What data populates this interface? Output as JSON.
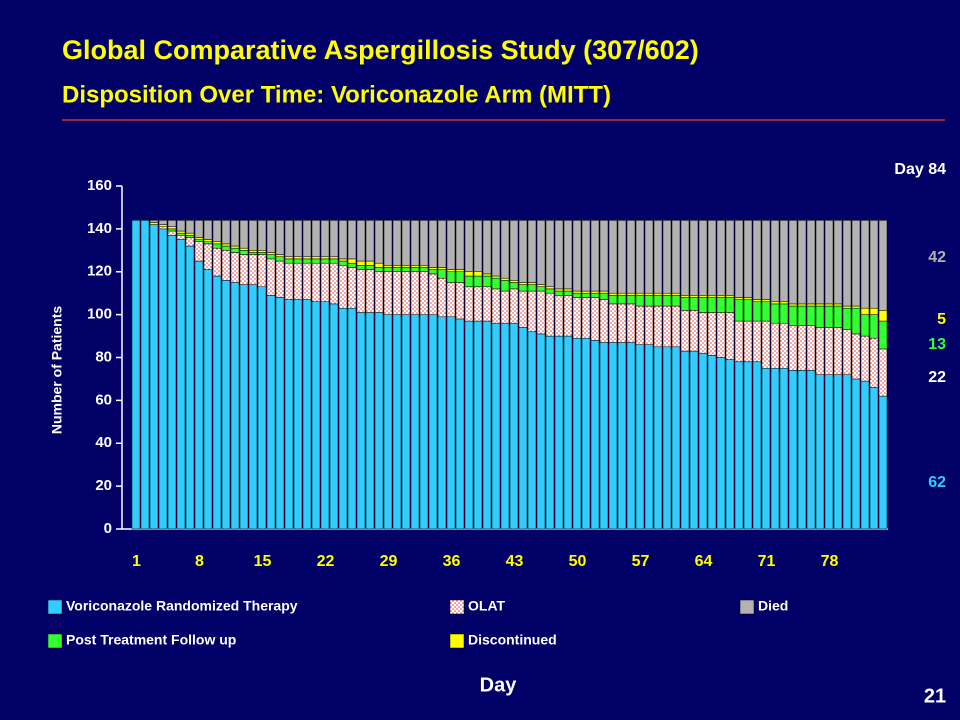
{
  "chart_data": {
    "type": "stacked_bar",
    "title": "Global Comparative Aspergillosis Study (307/602)",
    "subtitle": "Disposition Over Time: Voriconazole Arm (MITT)",
    "y_label": "Number of Patients",
    "x_label": "Day",
    "annotation": "Day 84",
    "page_number": "21",
    "categories": [
      "1",
      null,
      null,
      null,
      null,
      null,
      null,
      "8",
      null,
      null,
      null,
      null,
      null,
      null,
      "15",
      null,
      null,
      null,
      null,
      null,
      null,
      "22",
      null,
      null,
      null,
      null,
      null,
      null,
      "29",
      null,
      null,
      null,
      null,
      null,
      null,
      "36",
      null,
      null,
      null,
      null,
      null,
      null,
      "43",
      null,
      null,
      null,
      null,
      null,
      null,
      "50",
      null,
      null,
      null,
      null,
      null,
      null,
      "57",
      null,
      null,
      null,
      null,
      null,
      null,
      "64",
      null,
      null,
      null,
      null,
      null,
      null,
      "71",
      null,
      null,
      null,
      null,
      null,
      null,
      "78",
      null,
      null,
      null,
      null,
      null,
      null
    ],
    "series": [
      {
        "name": "Voriconazole Randomized Therapy",
        "color": "#33ccff",
        "values": [
          144,
          144,
          142,
          140,
          137,
          135,
          132,
          125,
          121,
          118,
          116,
          115,
          114,
          114,
          113,
          109,
          108,
          107,
          107,
          107,
          106,
          106,
          105,
          103,
          103,
          101,
          101,
          101,
          100,
          100,
          100,
          100,
          100,
          100,
          99,
          99,
          98,
          97,
          97,
          97,
          96,
          96,
          96,
          94,
          92,
          91,
          90,
          90,
          90,
          89,
          89,
          88,
          87,
          87,
          87,
          87,
          86,
          86,
          85,
          85,
          85,
          83,
          83,
          82,
          81,
          80,
          79,
          78,
          78,
          78,
          75,
          75,
          75,
          74,
          74,
          74,
          72,
          72,
          72,
          72,
          70,
          69,
          66,
          62
        ]
      },
      {
        "name": "OLAT",
        "color": "#ff3333",
        "values": [
          0,
          0,
          0,
          1,
          2,
          2,
          4,
          9,
          12,
          13,
          14,
          14,
          14,
          14,
          15,
          17,
          17,
          17,
          17,
          17,
          18,
          18,
          19,
          20,
          19,
          20,
          20,
          19,
          20,
          20,
          20,
          20,
          20,
          19,
          18,
          16,
          17,
          16,
          16,
          16,
          16,
          15,
          16,
          17,
          19,
          20,
          20,
          19,
          19,
          19,
          19,
          20,
          20,
          18,
          18,
          18,
          18,
          18,
          19,
          19,
          19,
          19,
          19,
          19,
          20,
          21,
          22,
          19,
          19,
          19,
          22,
          21,
          21,
          21,
          21,
          21,
          22,
          22,
          22,
          21,
          21,
          21,
          23,
          22
        ]
      },
      {
        "name": "Post Treatment Follow up",
        "color": "#33ff33",
        "values": [
          0,
          0,
          0,
          0,
          1,
          1,
          1,
          1,
          1,
          2,
          2,
          2,
          2,
          1,
          1,
          2,
          2,
          2,
          2,
          2,
          2,
          2,
          2,
          2,
          2,
          2,
          2,
          2,
          2,
          2,
          2,
          2,
          2,
          2,
          4,
          5,
          5,
          5,
          5,
          5,
          5,
          5,
          3,
          3,
          3,
          2,
          2,
          2,
          2,
          2,
          2,
          2,
          3,
          4,
          4,
          4,
          5,
          5,
          5,
          5,
          5,
          6,
          6,
          7,
          7,
          7,
          7,
          10,
          10,
          9,
          9,
          9,
          9,
          9,
          9,
          9,
          10,
          10,
          10,
          10,
          12,
          10,
          11,
          13
        ]
      },
      {
        "name": "Discontinued",
        "color": "#ffff00",
        "values": [
          0,
          0,
          1,
          1,
          1,
          1,
          1,
          1,
          1,
          1,
          1,
          1,
          1,
          1,
          1,
          1,
          1,
          1,
          1,
          1,
          1,
          1,
          1,
          1,
          2,
          2,
          2,
          2,
          1,
          1,
          1,
          1,
          1,
          1,
          1,
          1,
          1,
          2,
          2,
          1,
          1,
          1,
          1,
          1,
          1,
          1,
          1,
          1,
          1,
          1,
          1,
          1,
          1,
          1,
          1,
          1,
          1,
          1,
          1,
          1,
          1,
          1,
          1,
          1,
          1,
          1,
          1,
          1,
          1,
          1,
          1,
          1,
          1,
          1,
          1,
          1,
          1,
          1,
          1,
          1,
          1,
          3,
          3,
          5
        ]
      },
      {
        "name": "Died",
        "color": "#b2b2b2",
        "values": [
          0,
          0,
          1,
          2,
          3,
          5,
          6,
          8,
          9,
          10,
          11,
          12,
          13,
          14,
          14,
          15,
          16,
          17,
          17,
          17,
          17,
          17,
          17,
          18,
          18,
          19,
          19,
          20,
          21,
          21,
          21,
          21,
          21,
          22,
          22,
          23,
          23,
          24,
          24,
          25,
          26,
          27,
          28,
          29,
          29,
          30,
          31,
          32,
          32,
          33,
          33,
          33,
          33,
          34,
          34,
          34,
          34,
          34,
          34,
          34,
          34,
          35,
          35,
          35,
          35,
          35,
          35,
          36,
          36,
          37,
          37,
          38,
          38,
          39,
          39,
          39,
          39,
          39,
          39,
          40,
          40,
          41,
          41,
          42
        ]
      }
    ],
    "ylim": [
      0,
      160
    ],
    "yticks": [
      0,
      20,
      40,
      60,
      80,
      100,
      120,
      140,
      160
    ],
    "grid": false
  }
}
